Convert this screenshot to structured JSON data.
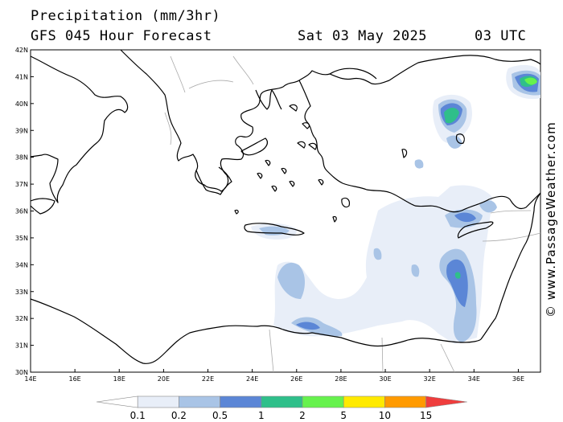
{
  "header": {
    "title": "Precipitation (mm/3hr)",
    "subtitle": "GFS 045 Hour Forecast",
    "date": "Sat 03 May 2025",
    "time": "03 UTC"
  },
  "watermark": "© www.PassageWeather.com",
  "map": {
    "region": "Eastern Mediterranean",
    "lon_range": [
      14,
      37
    ],
    "lat_range": [
      30,
      42
    ],
    "lat_labels": [
      "42N",
      "41N",
      "40N",
      "39N",
      "38N",
      "37N",
      "36N",
      "35N",
      "34N",
      "33N",
      "32N",
      "31N",
      "30N"
    ],
    "lon_labels": [
      "14E",
      "16E",
      "18E",
      "20E",
      "22E",
      "24E",
      "26E",
      "28E",
      "30E",
      "32E",
      "34E",
      "36E"
    ],
    "coast_color": "#000000",
    "border_color": "#aaaaaa"
  },
  "legend": {
    "labels": [
      "0.1",
      "0.2",
      "0.5",
      "1",
      "2",
      "5",
      "10",
      "15"
    ],
    "colors": [
      "#ffffff",
      "#e8eef8",
      "#a9c4e6",
      "#5b86d6",
      "#2fbf8a",
      "#66f24d",
      "#ffea00",
      "#ff9a00",
      "#ef3d3d"
    ]
  }
}
